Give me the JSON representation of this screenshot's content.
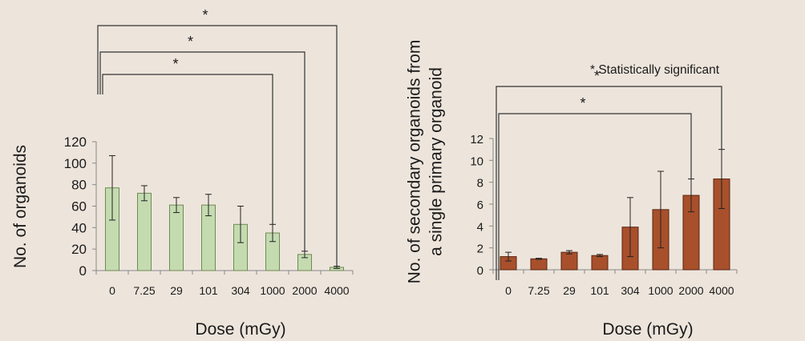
{
  "note": "* Statistically significant",
  "chart_data": [
    {
      "type": "bar",
      "xlabel": "Dose (mGy)",
      "ylabel": "No. of organoids",
      "ylim": [
        0,
        120
      ],
      "yticks": [
        0,
        20,
        40,
        60,
        80,
        100,
        120
      ],
      "categories": [
        "0",
        "7.25",
        "29",
        "101",
        "304",
        "1000",
        "2000",
        "4000"
      ],
      "values": [
        77,
        72,
        61,
        61,
        43,
        35,
        15,
        3
      ],
      "errors": [
        30,
        7,
        7,
        10,
        17,
        8,
        3,
        1
      ],
      "bar_color": "#c4dbb0",
      "bar_edge": "#6f8a55",
      "significance": [
        {
          "from": "0",
          "to": "1000",
          "label": "*"
        },
        {
          "from": "0",
          "to": "2000",
          "label": "*"
        },
        {
          "from": "0",
          "to": "4000",
          "label": "*"
        }
      ]
    },
    {
      "type": "bar",
      "xlabel": "Dose (mGy)",
      "ylabel": [
        "No. of secondary organoids from",
        "a single primary organoid"
      ],
      "ylim": [
        0,
        12
      ],
      "yticks": [
        0,
        2,
        4,
        6,
        8,
        10,
        12
      ],
      "categories": [
        "0",
        "7.25",
        "29",
        "101",
        "304",
        "1000",
        "2000",
        "4000"
      ],
      "values": [
        1.2,
        1.0,
        1.6,
        1.3,
        3.9,
        5.5,
        6.8,
        8.3
      ],
      "errors": [
        0.4,
        0.05,
        0.15,
        0.1,
        2.7,
        3.5,
        1.5,
        2.7
      ],
      "bar_color": "#a8502b",
      "bar_edge": "#5a2410",
      "significance": [
        {
          "from": "0",
          "to": "2000",
          "label": "*"
        },
        {
          "from": "0",
          "to": "4000",
          "label": "*"
        }
      ]
    }
  ]
}
